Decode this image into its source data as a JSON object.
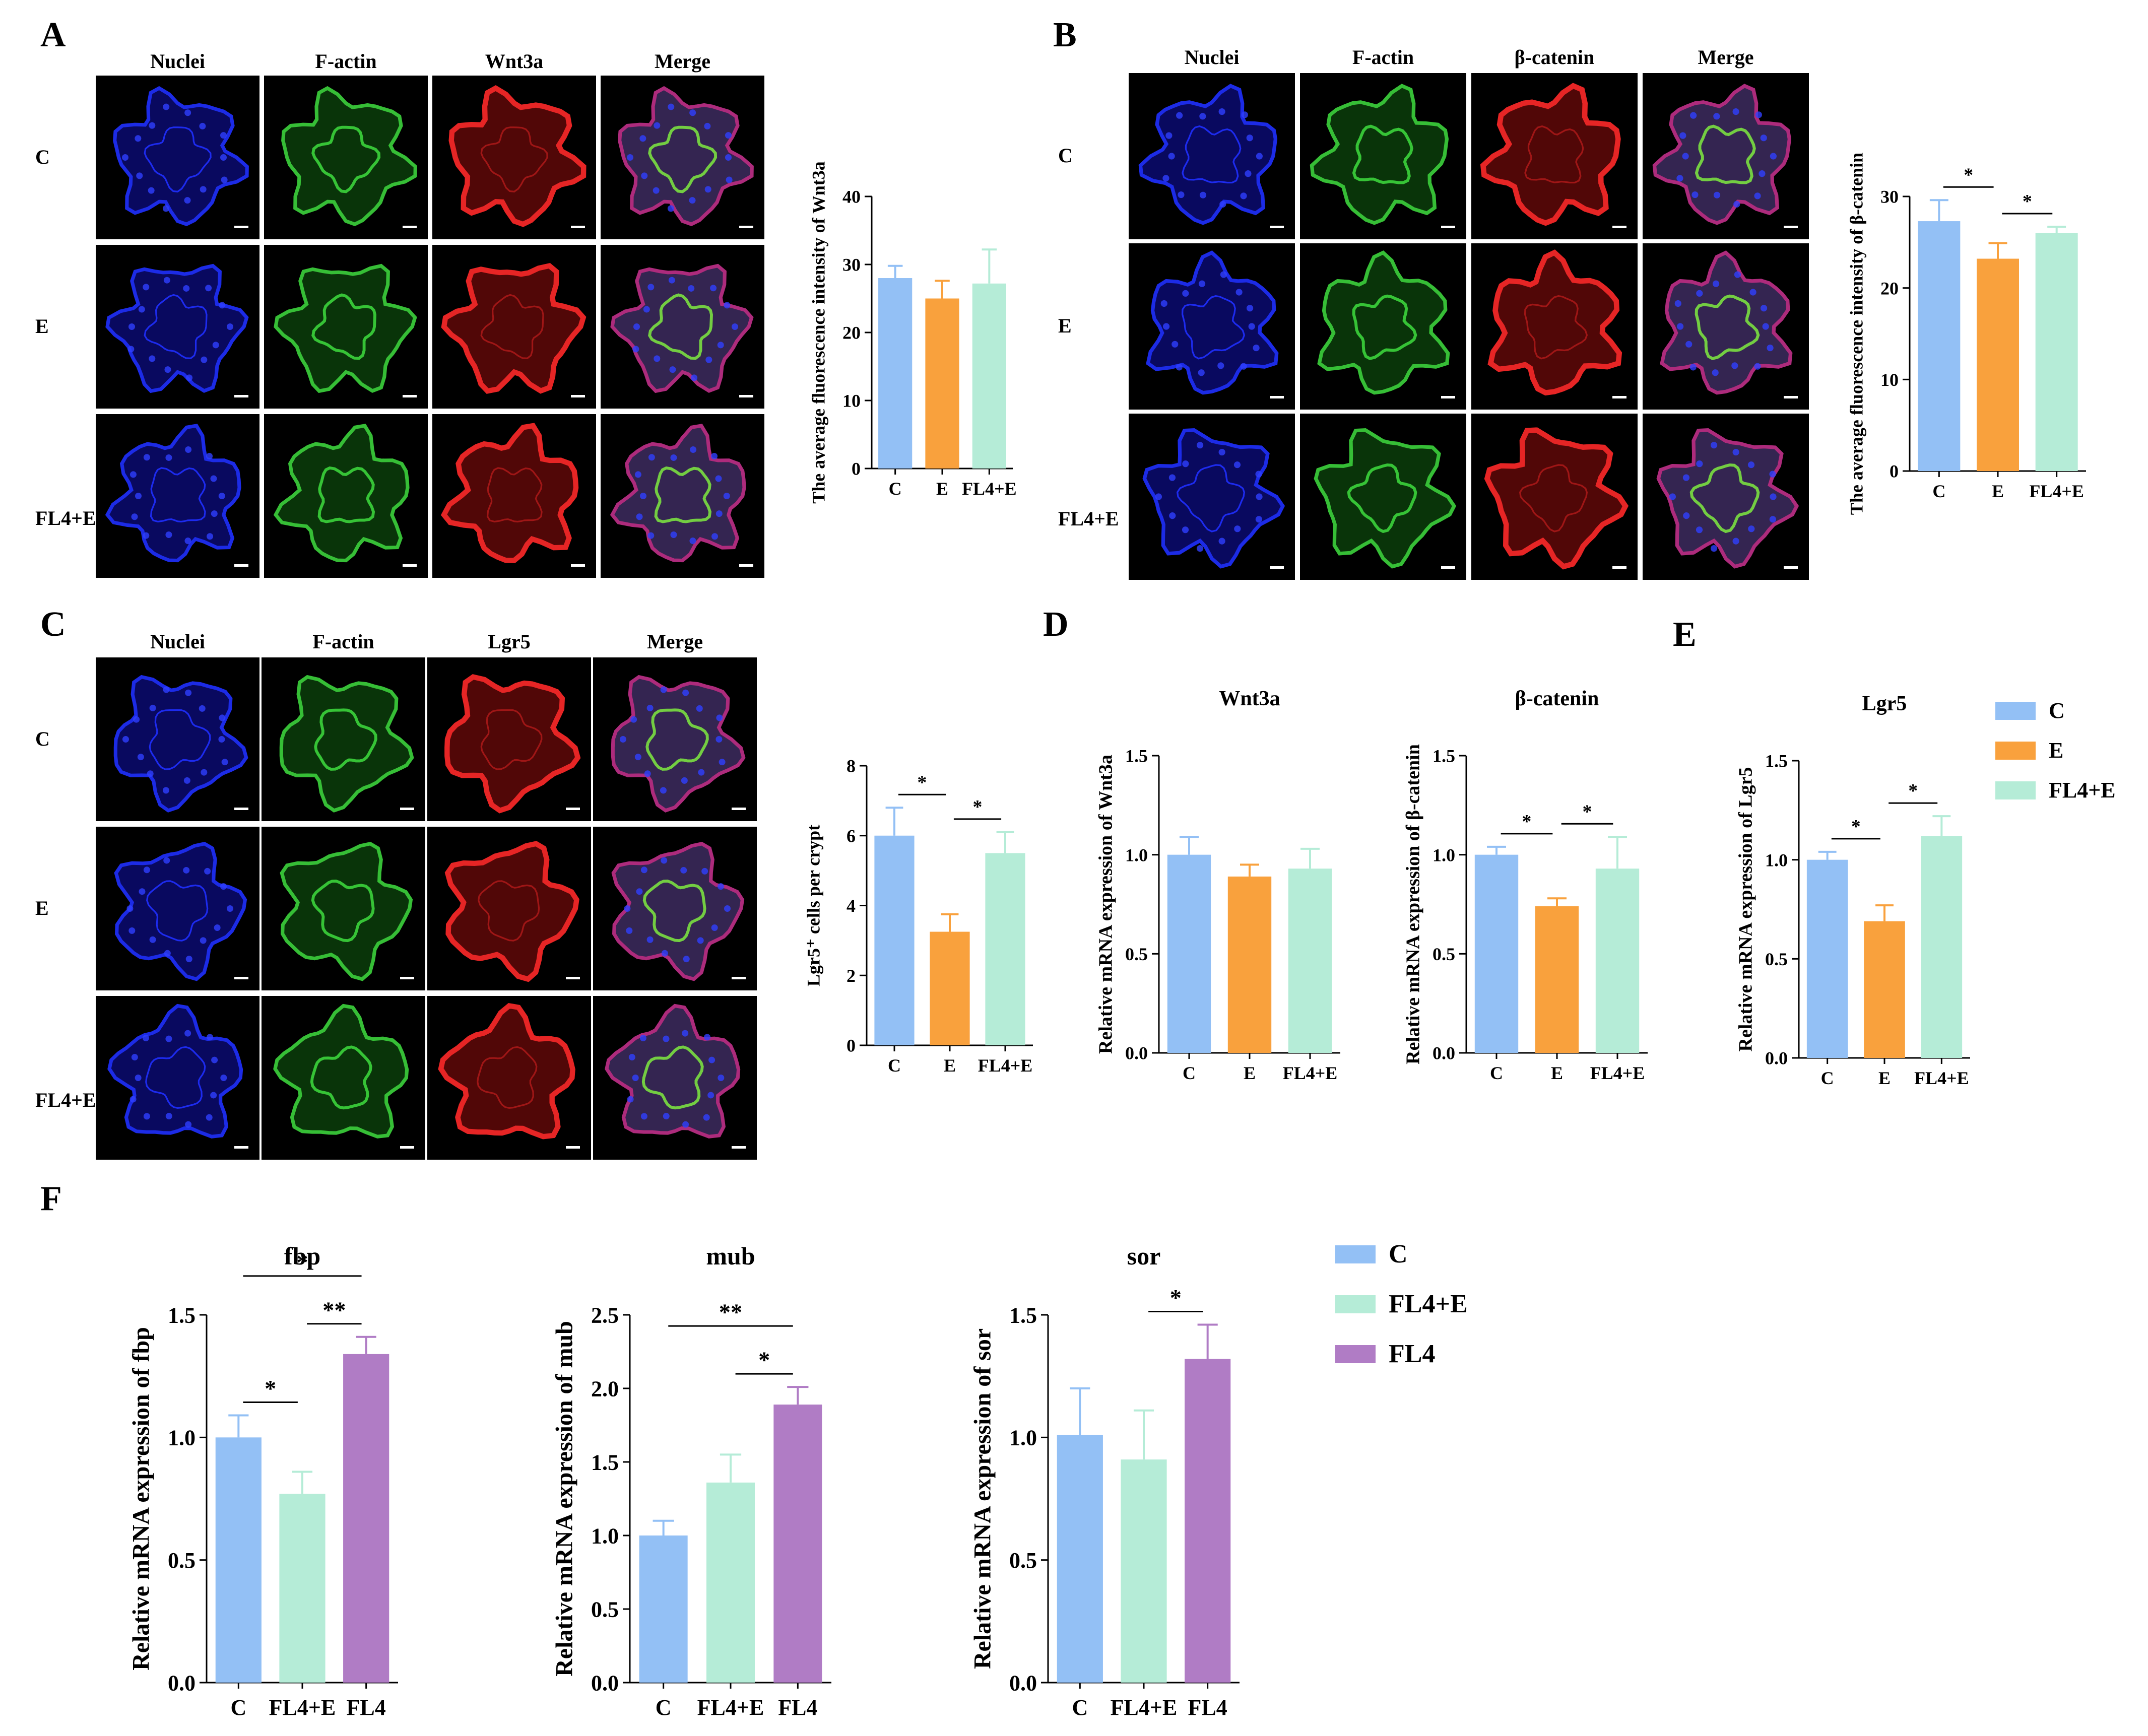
{
  "panels": {
    "A": {
      "letter": "A",
      "columns": [
        "Nuclei",
        "F-actin",
        "Wnt3a",
        "Merge"
      ],
      "rows": [
        "C",
        "E",
        "FL4+E"
      ]
    },
    "B": {
      "letter": "B",
      "columns": [
        "Nuclei",
        "F-actin",
        "β-catenin",
        "Merge"
      ],
      "rows": [
        "C",
        "E",
        "FL4+E"
      ]
    },
    "C": {
      "letter": "C",
      "columns": [
        "Nuclei",
        "F-actin",
        "Lgr5",
        "Merge"
      ],
      "rows": [
        "C",
        "E",
        "FL4+E"
      ]
    },
    "D": {
      "letter": "D"
    },
    "E": {
      "letter": "E"
    },
    "F": {
      "letter": "F"
    }
  },
  "legends": {
    "top": [
      {
        "label": "C",
        "color": "#93c0f5"
      },
      {
        "label": "E",
        "color": "#f9a13d"
      },
      {
        "label": "FL4+E",
        "color": "#b5ecd7"
      }
    ],
    "bottom": [
      {
        "label": "C",
        "color": "#93c0f5"
      },
      {
        "label": "FL4+E",
        "color": "#b5ecd7"
      },
      {
        "label": "FL4",
        "color": "#b07cc5"
      }
    ]
  },
  "colors": {
    "C": "#93c0f5",
    "E": "#f9a13d",
    "FL4+E": "#b5ecd7",
    "FL4": "#b07cc5"
  },
  "chart_data": [
    {
      "id": "A",
      "type": "bar",
      "title": "",
      "ylabel": "The average fluorescence intensity of Wnt3a",
      "categories": [
        "C",
        "E",
        "FL4+E"
      ],
      "values": [
        28,
        25,
        27.2
      ],
      "errors": [
        1.8,
        2.6,
        5
      ],
      "ylim": [
        0,
        40
      ],
      "yticks": [
        0,
        10,
        20,
        30,
        40
      ],
      "sig": []
    },
    {
      "id": "B",
      "type": "bar",
      "title": "",
      "ylabel": "The average fluorescence intensity of  β-catenin",
      "categories": [
        "C",
        "E",
        "FL4+E"
      ],
      "values": [
        27.3,
        23.2,
        26
      ],
      "errors": [
        2.3,
        1.7,
        0.7
      ],
      "ylim": [
        0,
        30
      ],
      "yticks": [
        0,
        10,
        20,
        30
      ],
      "sig": [
        {
          "from": 0,
          "to": 1,
          "label": "*"
        },
        {
          "from": 1,
          "to": 2,
          "label": "*"
        }
      ]
    },
    {
      "id": "C",
      "type": "bar",
      "title": "",
      "ylabel": "Lgr5⁺ cells per crypt",
      "categories": [
        "C",
        "E",
        "FL4+E"
      ],
      "values": [
        6,
        3.25,
        5.5
      ],
      "errors": [
        0.8,
        0.5,
        0.6
      ],
      "ylim": [
        0,
        8
      ],
      "yticks": [
        0,
        2,
        4,
        6,
        8
      ],
      "sig": [
        {
          "from": 0,
          "to": 1,
          "label": "*"
        },
        {
          "from": 1,
          "to": 2,
          "label": "*"
        }
      ]
    },
    {
      "id": "D1",
      "type": "bar",
      "title": "Wnt3a",
      "ylabel": "Relative mRNA expression of Wnt3a",
      "categories": [
        "C",
        "E",
        "FL4+E"
      ],
      "values": [
        1.0,
        0.89,
        0.93
      ],
      "errors": [
        0.09,
        0.06,
        0.1
      ],
      "ylim": [
        0,
        1.5
      ],
      "yticks": [
        0.0,
        0.5,
        1.0,
        1.5
      ],
      "sig": []
    },
    {
      "id": "D2",
      "type": "bar",
      "title": "β-catenin",
      "ylabel": "Relative mRNA expression of β-catenin",
      "categories": [
        "C",
        "E",
        "FL4+E"
      ],
      "values": [
        1.0,
        0.74,
        0.93
      ],
      "errors": [
        0.04,
        0.04,
        0.16
      ],
      "ylim": [
        0,
        1.5
      ],
      "yticks": [
        0.0,
        0.5,
        1.0,
        1.5
      ],
      "sig": [
        {
          "from": 0,
          "to": 1,
          "label": "*"
        },
        {
          "from": 1,
          "to": 2,
          "label": "*"
        }
      ]
    },
    {
      "id": "E",
      "type": "bar",
      "title": "Lgr5",
      "ylabel": "Relative mRNA expression of Lgr5",
      "categories": [
        "C",
        "E",
        "FL4+E"
      ],
      "values": [
        1.0,
        0.69,
        1.12
      ],
      "errors": [
        0.04,
        0.08,
        0.1
      ],
      "ylim": [
        0,
        1.5
      ],
      "yticks": [
        0.0,
        0.5,
        1.0,
        1.5
      ],
      "sig": [
        {
          "from": 0,
          "to": 1,
          "label": "*"
        },
        {
          "from": 1,
          "to": 2,
          "label": "*"
        }
      ]
    },
    {
      "id": "F1",
      "type": "bar",
      "title": "fbp",
      "ylabel": "Relative mRNA expression of fbp",
      "categories": [
        "C",
        "FL4+E",
        "FL4"
      ],
      "values": [
        1.0,
        0.77,
        1.34
      ],
      "errors": [
        0.09,
        0.09,
        0.07
      ],
      "ylim": [
        0,
        1.5
      ],
      "yticks": [
        0.0,
        0.5,
        1.0,
        1.5
      ],
      "sig": [
        {
          "from": 0,
          "to": 1,
          "label": "*",
          "level": 0
        },
        {
          "from": 1,
          "to": 2,
          "label": "**",
          "level": 0
        },
        {
          "from": 0,
          "to": 2,
          "label": "*",
          "level": 1
        }
      ]
    },
    {
      "id": "F2",
      "type": "bar",
      "title": "mub",
      "ylabel": "Relative mRNA expression of mub",
      "categories": [
        "C",
        "FL4+E",
        "FL4"
      ],
      "values": [
        1.0,
        1.36,
        1.89
      ],
      "errors": [
        0.1,
        0.19,
        0.12
      ],
      "ylim": [
        0,
        2.5
      ],
      "yticks": [
        0.0,
        0.5,
        1.0,
        1.5,
        2.0,
        2.5
      ],
      "sig": [
        {
          "from": 1,
          "to": 2,
          "label": "*",
          "level": 0
        },
        {
          "from": 0,
          "to": 2,
          "label": "**",
          "level": 1
        }
      ]
    },
    {
      "id": "F3",
      "type": "bar",
      "title": "sor",
      "ylabel": "Relative mRNA expression of sor",
      "categories": [
        "C",
        "FL4+E",
        "FL4"
      ],
      "values": [
        1.01,
        0.91,
        1.32
      ],
      "errors": [
        0.19,
        0.2,
        0.14
      ],
      "ylim": [
        0,
        1.5
      ],
      "yticks": [
        0.0,
        0.5,
        1.0,
        1.5
      ],
      "sig": [
        {
          "from": 1,
          "to": 2,
          "label": "*",
          "level": 0
        }
      ]
    }
  ]
}
